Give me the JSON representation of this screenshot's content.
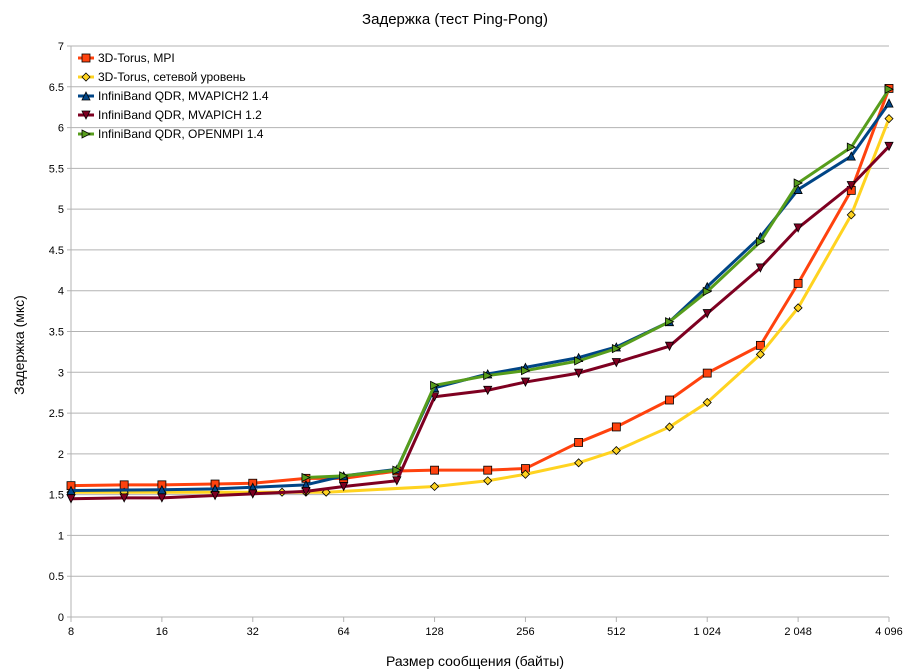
{
  "chart_data": {
    "type": "line",
    "title": "Задержка (тест Ping-Pong)",
    "xlabel": "Размер сообщения (байты)",
    "ylabel": "Задержка (мкс)",
    "x_scale": "log2",
    "xlim": [
      8,
      4096
    ],
    "ylim": [
      0,
      7
    ],
    "x_ticks": [
      8,
      16,
      32,
      64,
      128,
      256,
      512,
      1024,
      2048,
      4096
    ],
    "x_tick_labels": [
      "8",
      "16",
      "32",
      "64",
      "128",
      "256",
      "512",
      "1 024",
      "2 048",
      "4 096"
    ],
    "y_ticks": [
      0,
      0.5,
      1,
      1.5,
      2,
      2.5,
      3,
      3.5,
      4,
      4.5,
      5,
      5.5,
      6,
      6.5,
      7
    ],
    "y_tick_labels": [
      "0",
      "0.5",
      "1",
      "1.5",
      "2",
      "2.5",
      "3",
      "3.5",
      "4",
      "4.5",
      "5",
      "5.5",
      "6",
      "6.5",
      "7"
    ],
    "grid": "horizontal",
    "legend_position": "top-left",
    "series": [
      {
        "name": "3D-Torus, MPI",
        "color": "#ff420e",
        "marker": "square",
        "marker_fill": "#ff420e",
        "x": [
          8,
          12,
          16,
          24,
          32,
          48,
          64,
          96,
          128,
          192,
          256,
          384,
          512,
          768,
          1024,
          1536,
          2048,
          3072,
          4096
        ],
        "y": [
          1.61,
          1.62,
          1.62,
          1.63,
          1.64,
          1.7,
          1.7,
          1.79,
          1.8,
          1.8,
          1.82,
          2.14,
          2.33,
          2.66,
          2.99,
          3.33,
          4.09,
          5.23,
          6.48
        ]
      },
      {
        "name": "3D-Torus, сетевой уровень",
        "color": "#ffd320",
        "marker": "diamond",
        "marker_fill": "#ffd320",
        "x": [
          8,
          12,
          16,
          24,
          32,
          40,
          48,
          56,
          128,
          192,
          256,
          384,
          512,
          768,
          1024,
          1536,
          2048,
          3072,
          4096
        ],
        "y": [
          1.53,
          1.53,
          1.53,
          1.53,
          1.53,
          1.53,
          1.53,
          1.53,
          1.6,
          1.67,
          1.75,
          1.89,
          2.04,
          2.33,
          2.63,
          3.22,
          3.79,
          4.93,
          6.11
        ]
      },
      {
        "name": "InfiniBand QDR, MVAPICH2 1.4",
        "color": "#004586",
        "marker": "triangle-up",
        "marker_fill": "#004586",
        "x": [
          8,
          16,
          24,
          32,
          48,
          64,
          96,
          128,
          192,
          256,
          384,
          512,
          768,
          1024,
          1536,
          2048,
          3072,
          4096
        ],
        "y": [
          1.55,
          1.56,
          1.57,
          1.59,
          1.62,
          1.73,
          1.81,
          2.81,
          2.98,
          3.06,
          3.18,
          3.31,
          3.62,
          4.05,
          4.66,
          5.24,
          5.65,
          6.3
        ]
      },
      {
        "name": "InfiniBand QDR, MVAPICH 1.2",
        "color": "#7e0021",
        "marker": "triangle-down",
        "marker_fill": "#7e0021",
        "x": [
          8,
          12,
          16,
          24,
          32,
          48,
          64,
          96,
          128,
          192,
          256,
          384,
          512,
          768,
          1024,
          1536,
          2048,
          3072,
          4096
        ],
        "y": [
          1.45,
          1.46,
          1.46,
          1.49,
          1.51,
          1.54,
          1.6,
          1.67,
          2.7,
          2.78,
          2.88,
          2.99,
          3.12,
          3.32,
          3.72,
          4.28,
          4.77,
          5.29,
          5.77
        ]
      },
      {
        "name": "InfiniBand QDR, OPENMPI 1.4",
        "color": "#579d1c",
        "marker": "triangle-right",
        "marker_fill": "#579d1c",
        "x": [
          48,
          64,
          96,
          128,
          192,
          256,
          384,
          512,
          768,
          1024,
          1536,
          2048,
          3072,
          4096
        ],
        "y": [
          1.71,
          1.73,
          1.8,
          2.84,
          2.96,
          3.02,
          3.14,
          3.29,
          3.62,
          3.99,
          4.6,
          5.32,
          5.76,
          6.47
        ]
      }
    ]
  }
}
